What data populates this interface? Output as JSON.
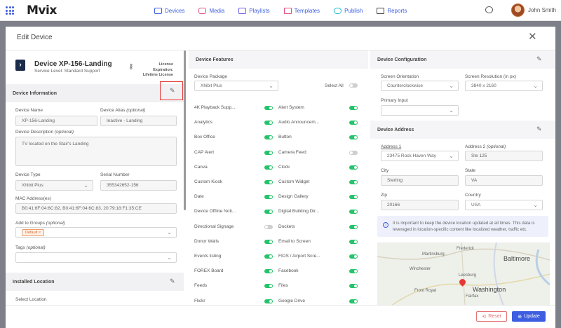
{
  "app": {
    "logo": "Mvix",
    "user": "John Smith"
  },
  "nav": [
    {
      "label": "Devices"
    },
    {
      "label": "Media"
    },
    {
      "label": "Playlists"
    },
    {
      "label": "Templates"
    },
    {
      "label": "Publish"
    },
    {
      "label": "Reports"
    }
  ],
  "modal": {
    "title": "Edit Device"
  },
  "device": {
    "name": "Device XP-156-Landing",
    "service_level": "Service Level: Standard Support",
    "license_line1": "License Expiration:",
    "license_line2": "Lifetime License"
  },
  "info_section": {
    "title": "Device Information",
    "name_label": "Device Name",
    "name_value": "XP-156-Landing",
    "alias_label": "Device Alias",
    "alias_opt": "(optional)",
    "alias_value": "Inactive - Landing",
    "desc_label": "Device Description",
    "desc_opt": "(optional)",
    "desc_value": "TV located on the Stair's Landing",
    "type_label": "Device Type",
    "type_value": "Xhibit Plus",
    "serial_label": "Serial Number",
    "serial_value": "355342652-156",
    "mac_label": "MAC Address(es)",
    "mac_value": "B0:41:6F:04:6C:82, B0:41:6F:04:6C:83, 20:79:18:F1:35:CE",
    "groups_label": "Add to Groups",
    "groups_opt": "(optional)",
    "group_tag": "Default",
    "tags_label": "Tags",
    "tags_opt": "(optional)"
  },
  "installed_location": {
    "title": "Installed Location",
    "select_label": "Select Location"
  },
  "features": {
    "title": "Device Features",
    "package_label": "Device Package",
    "package_value": "Xhibit Plus",
    "select_all": "Select All",
    "items": [
      {
        "label": "4K Playback Supp...",
        "on": true
      },
      {
        "label": "Alert System",
        "on": true
      },
      {
        "label": "Analytics",
        "on": true
      },
      {
        "label": "Audio Announcem...",
        "on": true
      },
      {
        "label": "Box Office",
        "on": true
      },
      {
        "label": "Button",
        "on": true
      },
      {
        "label": "CAP Alert",
        "on": true
      },
      {
        "label": "Camera Feed",
        "on": false
      },
      {
        "label": "Canva",
        "on": true
      },
      {
        "label": "Clock",
        "on": true
      },
      {
        "label": "Custom Kiosk",
        "on": true
      },
      {
        "label": "Custom Widget",
        "on": true
      },
      {
        "label": "Date",
        "on": true
      },
      {
        "label": "Design Gallery",
        "on": true
      },
      {
        "label": "Device Offline Noti...",
        "on": true
      },
      {
        "label": "Digital Building Dir...",
        "on": true
      },
      {
        "label": "Directional Signage",
        "on": false
      },
      {
        "label": "Dockets",
        "on": true
      },
      {
        "label": "Donor Walls",
        "on": true
      },
      {
        "label": "Email to Screen",
        "on": true
      },
      {
        "label": "Events listing",
        "on": true
      },
      {
        "label": "FIDS / Airport Scre...",
        "on": true
      },
      {
        "label": "FOREX Board",
        "on": true
      },
      {
        "label": "Facebook",
        "on": true
      },
      {
        "label": "Feeds",
        "on": true
      },
      {
        "label": "Files",
        "on": true
      },
      {
        "label": "Flickr",
        "on": true
      },
      {
        "label": "Google Drive",
        "on": true
      }
    ]
  },
  "configuration": {
    "title": "Device Configuration",
    "orientation_label": "Screen Orientation",
    "orientation_value": "Counterclockwise",
    "resolution_label": "Screen Resolution (in px)",
    "resolution_value": "3840 x 2160",
    "input_label": "Primary Input",
    "input_value": ""
  },
  "address": {
    "title": "Device Address",
    "addr1_label": "Address 1",
    "addr1_value": "23475 Rock Haven Way",
    "addr2_label": "Address 2",
    "addr2_opt": "(optional)",
    "addr2_value": "Ste 125",
    "city_label": "City",
    "city_value": "Sterling",
    "state_label": "State",
    "state_value": "VA",
    "zip_label": "Zip",
    "zip_value": "20166",
    "country_label": "Country",
    "country_value": "USA",
    "info_text": "It is important to keep the device location updated at all times. This data is leveraged in location-specific content like localized weather, traffic etc."
  },
  "map": {
    "labels": [
      "Frederick",
      "Martinsburg",
      "Baltimore",
      "Winchester",
      "Leesburg",
      "Washington",
      "Front Royal",
      "Fairfax"
    ]
  },
  "footer": {
    "reset": "Reset",
    "update": "Update"
  },
  "colors": {
    "accent": "#3d5ee0",
    "toggle_on": "#26c36b",
    "danger": "#e53935"
  }
}
